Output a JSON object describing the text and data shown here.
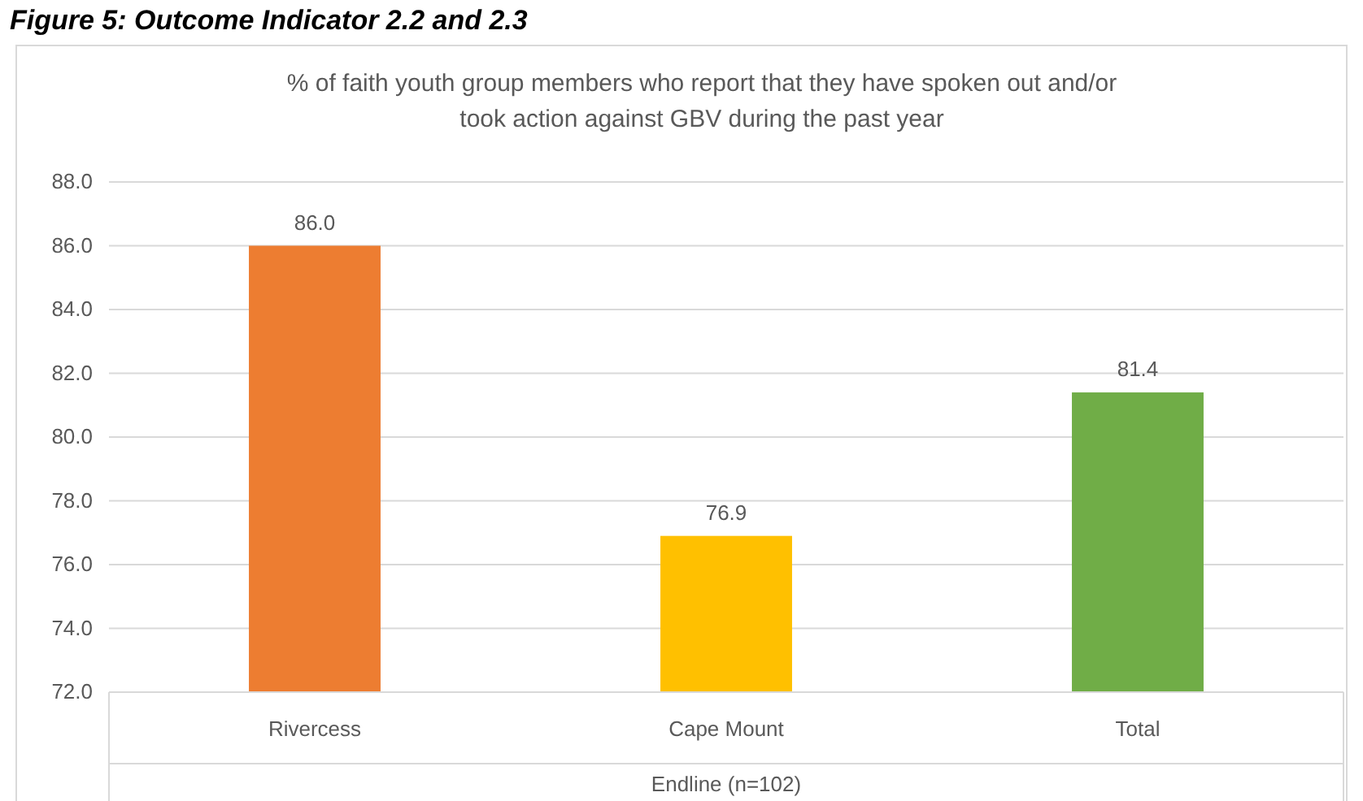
{
  "chart_data": {
    "type": "bar",
    "title": "% of faith youth group members who report that they have spoken out and/or took action against GBV during the past year",
    "annotations": [
      "Figure 5: Outcome Indicator 2.2 and 2.3"
    ],
    "categories": [
      "Rivercess",
      "Cape Mount",
      "Total"
    ],
    "values": [
      86.0,
      76.9,
      81.4
    ],
    "colors": [
      "#ed7d31",
      "#ffc000",
      "#70ad47"
    ],
    "xlabel": "Endline (n=102)",
    "ylim": [
      72,
      88
    ],
    "yticks": [
      {
        "value": 72,
        "label": "72.0"
      },
      {
        "value": 74,
        "label": "74.0"
      },
      {
        "value": 76,
        "label": "76.0"
      },
      {
        "value": 78,
        "label": "78.0"
      },
      {
        "value": 80,
        "label": "80.0"
      },
      {
        "value": 82,
        "label": "82.0"
      },
      {
        "value": 84,
        "label": "84.0"
      },
      {
        "value": 86,
        "label": "86.0"
      },
      {
        "value": 88,
        "label": "88.0"
      }
    ],
    "value_labels": [
      "86.0",
      "76.9",
      "81.4"
    ],
    "grid": "y"
  }
}
